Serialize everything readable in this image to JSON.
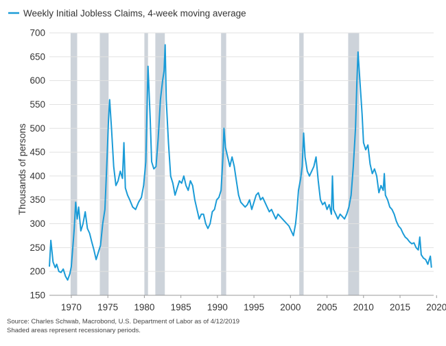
{
  "chart_data": {
    "type": "line",
    "title": "",
    "xlabel": "",
    "ylabel": "Thousands of persons",
    "ylim": [
      150,
      700
    ],
    "xlim": [
      1967,
      2019.6
    ],
    "y_ticks": [
      150,
      200,
      250,
      300,
      350,
      400,
      450,
      500,
      550,
      600,
      650,
      700
    ],
    "x_ticks": [
      1970,
      1975,
      1980,
      1985,
      1990,
      1995,
      2000,
      2005,
      2010,
      2015,
      2020
    ],
    "grid": "horizontal",
    "legend_placement": "top-left",
    "series": [
      {
        "name": "Weekly Initial Jobless Claims, 4-week moving average",
        "color": "#1a9bd7",
        "points": [
          [
            1967.0,
            210
          ],
          [
            1967.2,
            265
          ],
          [
            1967.5,
            220
          ],
          [
            1967.8,
            208
          ],
          [
            1968.0,
            215
          ],
          [
            1968.3,
            200
          ],
          [
            1968.6,
            198
          ],
          [
            1968.9,
            205
          ],
          [
            1969.2,
            190
          ],
          [
            1969.5,
            182
          ],
          [
            1969.8,
            195
          ],
          [
            1970.0,
            210
          ],
          [
            1970.2,
            250
          ],
          [
            1970.4,
            290
          ],
          [
            1970.6,
            345
          ],
          [
            1970.8,
            310
          ],
          [
            1971.0,
            335
          ],
          [
            1971.3,
            285
          ],
          [
            1971.6,
            300
          ],
          [
            1971.9,
            325
          ],
          [
            1972.2,
            290
          ],
          [
            1972.5,
            280
          ],
          [
            1972.8,
            262
          ],
          [
            1973.1,
            245
          ],
          [
            1973.4,
            225
          ],
          [
            1973.7,
            240
          ],
          [
            1974.0,
            255
          ],
          [
            1974.3,
            300
          ],
          [
            1974.6,
            330
          ],
          [
            1974.9,
            440
          ],
          [
            1975.1,
            520
          ],
          [
            1975.25,
            560
          ],
          [
            1975.5,
            500
          ],
          [
            1975.8,
            420
          ],
          [
            1976.1,
            380
          ],
          [
            1976.4,
            390
          ],
          [
            1976.7,
            410
          ],
          [
            1977.0,
            395
          ],
          [
            1977.2,
            470
          ],
          [
            1977.4,
            375
          ],
          [
            1977.7,
            360
          ],
          [
            1978.0,
            350
          ],
          [
            1978.4,
            335
          ],
          [
            1978.8,
            330
          ],
          [
            1979.2,
            345
          ],
          [
            1979.6,
            355
          ],
          [
            1979.9,
            380
          ],
          [
            1980.2,
            430
          ],
          [
            1980.5,
            630
          ],
          [
            1980.8,
            520
          ],
          [
            1981.0,
            430
          ],
          [
            1981.3,
            415
          ],
          [
            1981.6,
            420
          ],
          [
            1981.9,
            480
          ],
          [
            1982.2,
            560
          ],
          [
            1982.5,
            600
          ],
          [
            1982.7,
            620
          ],
          [
            1982.85,
            675
          ],
          [
            1983.0,
            560
          ],
          [
            1983.3,
            470
          ],
          [
            1983.6,
            400
          ],
          [
            1983.9,
            385
          ],
          [
            1984.2,
            360
          ],
          [
            1984.5,
            375
          ],
          [
            1984.8,
            390
          ],
          [
            1985.1,
            385
          ],
          [
            1985.4,
            400
          ],
          [
            1985.7,
            380
          ],
          [
            1986.0,
            370
          ],
          [
            1986.3,
            390
          ],
          [
            1986.6,
            380
          ],
          [
            1986.9,
            350
          ],
          [
            1987.2,
            330
          ],
          [
            1987.5,
            310
          ],
          [
            1987.8,
            320
          ],
          [
            1988.1,
            320
          ],
          [
            1988.4,
            300
          ],
          [
            1988.7,
            290
          ],
          [
            1989.0,
            300
          ],
          [
            1989.3,
            325
          ],
          [
            1989.6,
            330
          ],
          [
            1989.9,
            350
          ],
          [
            1990.2,
            355
          ],
          [
            1990.5,
            370
          ],
          [
            1990.75,
            440
          ],
          [
            1990.9,
            500
          ],
          [
            1991.1,
            460
          ],
          [
            1991.4,
            440
          ],
          [
            1991.7,
            420
          ],
          [
            1992.0,
            440
          ],
          [
            1992.3,
            420
          ],
          [
            1992.6,
            390
          ],
          [
            1992.9,
            360
          ],
          [
            1993.2,
            345
          ],
          [
            1993.5,
            340
          ],
          [
            1993.8,
            335
          ],
          [
            1994.1,
            340
          ],
          [
            1994.4,
            350
          ],
          [
            1994.7,
            330
          ],
          [
            1995.0,
            345
          ],
          [
            1995.3,
            360
          ],
          [
            1995.6,
            365
          ],
          [
            1995.9,
            350
          ],
          [
            1996.2,
            355
          ],
          [
            1996.5,
            345
          ],
          [
            1996.8,
            335
          ],
          [
            1997.1,
            325
          ],
          [
            1997.4,
            330
          ],
          [
            1997.7,
            320
          ],
          [
            1998.0,
            310
          ],
          [
            1998.3,
            320
          ],
          [
            1998.6,
            315
          ],
          [
            1998.9,
            310
          ],
          [
            1999.2,
            305
          ],
          [
            1999.5,
            300
          ],
          [
            1999.8,
            295
          ],
          [
            2000.1,
            285
          ],
          [
            2000.4,
            275
          ],
          [
            2000.7,
            300
          ],
          [
            2000.9,
            330
          ],
          [
            2001.1,
            370
          ],
          [
            2001.4,
            395
          ],
          [
            2001.6,
            420
          ],
          [
            2001.8,
            490
          ],
          [
            2002.0,
            440
          ],
          [
            2002.3,
            410
          ],
          [
            2002.6,
            400
          ],
          [
            2002.9,
            410
          ],
          [
            2003.2,
            420
          ],
          [
            2003.5,
            440
          ],
          [
            2003.8,
            390
          ],
          [
            2004.1,
            350
          ],
          [
            2004.4,
            340
          ],
          [
            2004.7,
            345
          ],
          [
            2005.0,
            330
          ],
          [
            2005.3,
            340
          ],
          [
            2005.6,
            320
          ],
          [
            2005.75,
            400
          ],
          [
            2005.9,
            330
          ],
          [
            2006.2,
            320
          ],
          [
            2006.5,
            310
          ],
          [
            2006.8,
            320
          ],
          [
            2007.1,
            315
          ],
          [
            2007.4,
            310
          ],
          [
            2007.7,
            320
          ],
          [
            2008.0,
            335
          ],
          [
            2008.3,
            360
          ],
          [
            2008.6,
            420
          ],
          [
            2008.9,
            500
          ],
          [
            2009.1,
            600
          ],
          [
            2009.25,
            660
          ],
          [
            2009.5,
            600
          ],
          [
            2009.8,
            530
          ],
          [
            2010.0,
            470
          ],
          [
            2010.3,
            455
          ],
          [
            2010.6,
            465
          ],
          [
            2010.9,
            425
          ],
          [
            2011.2,
            405
          ],
          [
            2011.5,
            415
          ],
          [
            2011.8,
            400
          ],
          [
            2012.1,
            365
          ],
          [
            2012.4,
            380
          ],
          [
            2012.7,
            370
          ],
          [
            2012.85,
            405
          ],
          [
            2013.0,
            360
          ],
          [
            2013.3,
            350
          ],
          [
            2013.6,
            335
          ],
          [
            2013.9,
            330
          ],
          [
            2014.2,
            320
          ],
          [
            2014.5,
            305
          ],
          [
            2014.8,
            295
          ],
          [
            2015.1,
            290
          ],
          [
            2015.4,
            280
          ],
          [
            2015.7,
            272
          ],
          [
            2016.0,
            268
          ],
          [
            2016.3,
            262
          ],
          [
            2016.6,
            258
          ],
          [
            2016.9,
            260
          ],
          [
            2017.2,
            250
          ],
          [
            2017.5,
            245
          ],
          [
            2017.7,
            272
          ],
          [
            2017.9,
            235
          ],
          [
            2018.2,
            228
          ],
          [
            2018.5,
            225
          ],
          [
            2018.8,
            215
          ],
          [
            2019.0,
            225
          ],
          [
            2019.15,
            232
          ],
          [
            2019.3,
            208
          ]
        ]
      }
    ],
    "recessions": [
      [
        1969.9,
        1970.8
      ],
      [
        1973.9,
        1975.1
      ],
      [
        1980.0,
        1980.5
      ],
      [
        1981.5,
        1982.8
      ],
      [
        1990.5,
        1991.2
      ],
      [
        2001.2,
        2001.8
      ],
      [
        2007.9,
        2009.4
      ]
    ],
    "recession_color": "#cdd3da"
  },
  "footnotes": {
    "source": "Source: Charles Schwab, Macrobond, U.S. Department of Labor as of 4/12/2019",
    "note": "Shaded areas represent recessionary periods."
  }
}
